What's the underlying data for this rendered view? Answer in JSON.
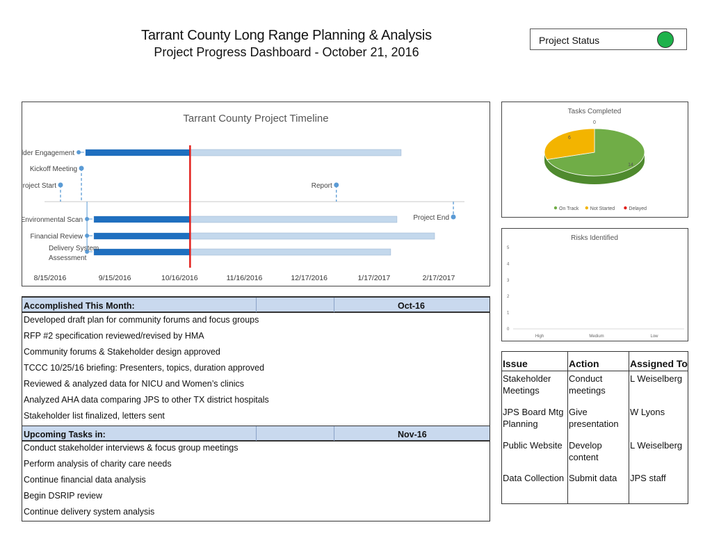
{
  "header": {
    "title": "Tarrant County Long Range Planning & Analysis",
    "subtitle": "Project Progress Dashboard - October 21, 2016"
  },
  "status": {
    "label": "Project Status",
    "color": "#1db24a"
  },
  "chart_data": [
    {
      "type": "gantt",
      "title": "Tarrant County Project Timeline",
      "x_ticks": [
        "8/15/2016",
        "9/15/2016",
        "10/16/2016",
        "11/16/2016",
        "12/17/2016",
        "1/17/2017",
        "2/17/2017"
      ],
      "x_range": [
        "2016-08-15",
        "2017-03-01"
      ],
      "today_marker": "2016-10-21",
      "bars": [
        {
          "label": "Stakeholder Engagement",
          "start": "2016-09-01",
          "progress_end": "2016-10-21",
          "end": "2017-01-30"
        },
        {
          "label": "Environmental Scan",
          "start": "2016-09-05",
          "progress_end": "2016-10-21",
          "end": "2017-01-28"
        },
        {
          "label": "Financial Review",
          "start": "2016-09-05",
          "progress_end": "2016-10-21",
          "end": "2017-02-15"
        },
        {
          "label": "Delivery System Assessment",
          "start": "2016-09-05",
          "progress_end": "2016-10-21",
          "end": "2017-01-25"
        }
      ],
      "milestones": [
        {
          "label": "Kickoff Meeting",
          "date": "2016-08-30"
        },
        {
          "label": "Project Start",
          "date": "2016-08-20"
        },
        {
          "label": "Report",
          "date": "2016-12-30"
        },
        {
          "label": "Project End",
          "date": "2017-02-24"
        }
      ],
      "colors": {
        "progress": "#1f6fbf",
        "remaining": "#c3d8ec",
        "marker": "#e2201c",
        "milestone": "#5b9bd5"
      }
    },
    {
      "type": "pie",
      "title": "Tasks Completed",
      "slices": [
        {
          "name": "On Track",
          "value": 14,
          "color": "#70ad47"
        },
        {
          "name": "Not Started",
          "value": 6,
          "color": "#f3b400"
        },
        {
          "name": "Delayed",
          "value": 0,
          "color": "#e2201c"
        }
      ],
      "legend": "bottom"
    },
    {
      "type": "bar",
      "title": "Risks Identified",
      "categories": [
        "High",
        "Medium",
        "Low"
      ],
      "values": [
        0,
        0,
        0
      ],
      "y_ticks": [
        "0",
        "1",
        "2",
        "3",
        "4",
        "5"
      ],
      "ylim": [
        0,
        5
      ]
    }
  ],
  "accomplished": {
    "label": "Accomplished This Month:",
    "month": "Oct-16",
    "items": [
      "Developed draft plan for community forums and focus groups",
      "RFP #2 specification reviewed/revised by HMA",
      "Community forums & Stakeholder design approved",
      "TCCC 10/25/16 briefing: Presenters, topics, duration approved",
      "Reviewed & analyzed data for NICU and Women’s clinics",
      "Analyzed AHA data comparing JPS to other TX district hospitals",
      "Stakeholder list finalized, letters sent"
    ]
  },
  "upcoming": {
    "label": "Upcoming Tasks in:",
    "month": "Nov-16",
    "items": [
      "Conduct stakeholder interviews & focus group meetings",
      "Perform analysis of charity care needs",
      "Continue financial data analysis",
      "Begin DSRIP review",
      "Continue delivery system analysis"
    ]
  },
  "issues": {
    "headers": [
      "Issue",
      "Action",
      "Assigned To"
    ],
    "rows": [
      {
        "issue": [
          "Stakeholder",
          "Meetings"
        ],
        "action": [
          "Conduct",
          "meetings"
        ],
        "assigned": "L Weiselberg"
      },
      {
        "issue": [
          "JPS Board Mtg",
          "Planning"
        ],
        "action": [
          "Give",
          "presentation"
        ],
        "assigned": "W Lyons"
      },
      {
        "issue": [
          "Public Website"
        ],
        "action": [
          "Develop",
          "content"
        ],
        "assigned": "L Weiselberg"
      },
      {
        "issue": [
          "Data Collection"
        ],
        "action": [
          "Submit data"
        ],
        "assigned": "JPS staff"
      }
    ]
  }
}
